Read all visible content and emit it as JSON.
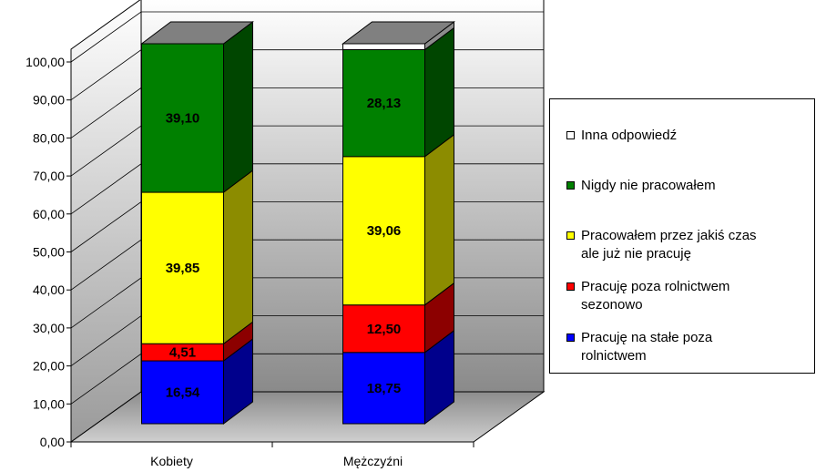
{
  "chart_data": {
    "type": "bar",
    "stacked": true,
    "categories": [
      "Kobiety",
      "Mężczyźni"
    ],
    "ylim": [
      0,
      100
    ],
    "yticks": [
      "0,00",
      "10,00",
      "20,00",
      "30,00",
      "40,00",
      "50,00",
      "60,00",
      "70,00",
      "80,00",
      "90,00",
      "100,00"
    ],
    "series": [
      {
        "name": "Pracuję na stałe poza rolnictwem",
        "values": [
          16.54,
          18.75
        ],
        "labels": [
          "16,54",
          "18,75"
        ],
        "color": "#0000ff"
      },
      {
        "name": "Pracuję poza rolnictwem sezonowo",
        "values": [
          4.51,
          12.5
        ],
        "labels": [
          "4,51",
          "12,50"
        ],
        "color": "#ff0000"
      },
      {
        "name": "Pracowałem przez jakiś czas ale już nie pracuję",
        "values": [
          39.85,
          39.06
        ],
        "labels": [
          "39,85",
          "39,06"
        ],
        "color": "#ffff00"
      },
      {
        "name": "Nigdy nie pracowałem",
        "values": [
          39.1,
          28.13
        ],
        "labels": [
          "39,10",
          "28,13"
        ],
        "color": "#008000"
      },
      {
        "name": "Inna odpowiedź",
        "values": [
          0.0,
          1.56
        ],
        "labels": [
          "",
          ""
        ],
        "color": "#ffffff"
      }
    ],
    "grid": true,
    "legend": "right"
  },
  "legend": {
    "items": [
      {
        "label": "Inna odpowiedź",
        "color": "#ffffff"
      },
      {
        "label": "Nigdy nie pracowałem",
        "color": "#008000"
      },
      {
        "label": "Pracowałem przez jakiś czas\nale już nie pracuję",
        "color": "#ffff00"
      },
      {
        "label": "Pracuję poza rolnictwem\nsezonowo",
        "color": "#ff0000"
      },
      {
        "label": "Pracuję na stałe poza\nrolnictwem",
        "color": "#0000ff"
      }
    ]
  }
}
